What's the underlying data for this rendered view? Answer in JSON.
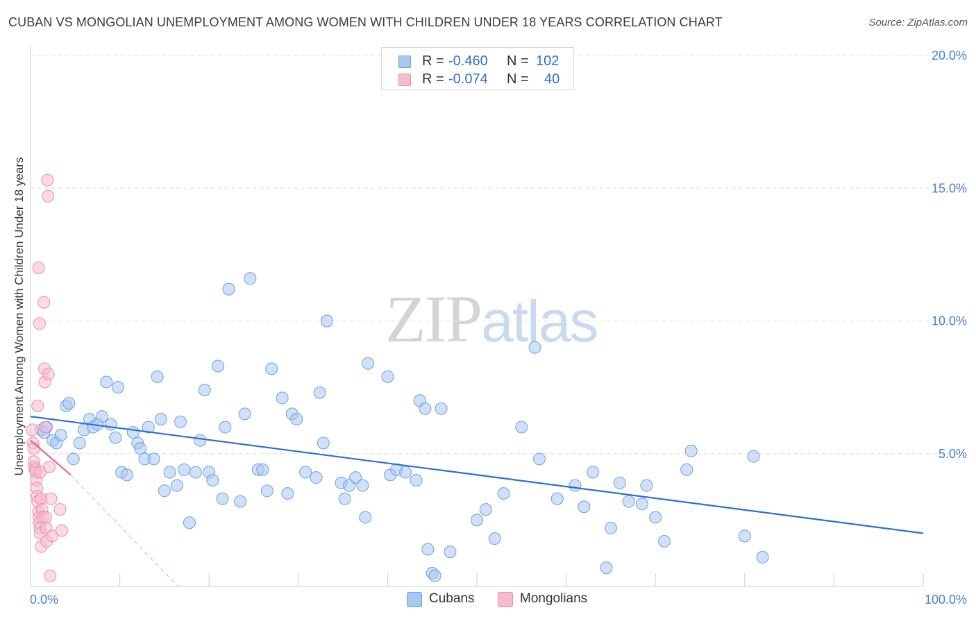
{
  "header": {
    "title": "CUBAN VS MONGOLIAN UNEMPLOYMENT AMONG WOMEN WITH CHILDREN UNDER 18 YEARS CORRELATION CHART",
    "source": "Source: ZipAtlas.com"
  },
  "watermark": {
    "zip": "ZIP",
    "atlas": "atlas"
  },
  "legend": {
    "rows": [
      {
        "r_label": "R =",
        "r_value": "-0.460",
        "n_label": "N =",
        "n_value": "102"
      },
      {
        "r_label": "R =",
        "r_value": "-0.074",
        "n_label": "N =",
        "n_value": "40"
      }
    ]
  },
  "bottom_legend": {
    "cubans": "Cubans",
    "mongolians": "Mongolians"
  },
  "colors": {
    "cubans_fill": "#a9c8f0",
    "cubans_stroke": "#6f9fde",
    "cubans_line": "#2a6fd0",
    "mongolians_fill": "#f6bccd",
    "mongolians_stroke": "#ec8fab",
    "mongolians_line": "#e4658f",
    "tick_color": "#4a7fcf",
    "grid": "#dddddd"
  },
  "chart_data": {
    "type": "scatter",
    "title": "CUBAN VS MONGOLIAN UNEMPLOYMENT AMONG WOMEN WITH CHILDREN UNDER 18 YEARS CORRELATION CHART",
    "xlabel": "",
    "ylabel": "Unemployment Among Women with Children Under 18 years",
    "xlim": [
      0,
      100
    ],
    "ylim": [
      0,
      20
    ],
    "x_tick_labels": [
      "0.0%",
      "100.0%"
    ],
    "y_ticks": [
      5,
      10,
      15,
      20
    ],
    "y_tick_labels": [
      "5.0%",
      "10.0%",
      "15.0%",
      "20.0%"
    ],
    "grid": true,
    "series": [
      {
        "name": "Cubans",
        "r": -0.46,
        "n": 102,
        "trend": {
          "x": [
            0,
            100
          ],
          "y": [
            6.4,
            2.0
          ]
        },
        "points": [
          [
            1.2,
            5.9
          ],
          [
            1.5,
            5.8
          ],
          [
            1.8,
            6.0
          ],
          [
            2.5,
            5.5
          ],
          [
            2.9,
            5.4
          ],
          [
            3.4,
            5.7
          ],
          [
            4.0,
            6.8
          ],
          [
            4.3,
            6.9
          ],
          [
            4.8,
            4.8
          ],
          [
            5.5,
            5.4
          ],
          [
            6.0,
            5.9
          ],
          [
            6.6,
            6.3
          ],
          [
            7.0,
            6.0
          ],
          [
            7.5,
            6.1
          ],
          [
            8.0,
            6.4
          ],
          [
            8.5,
            7.7
          ],
          [
            9.0,
            6.1
          ],
          [
            9.5,
            5.6
          ],
          [
            9.8,
            7.5
          ],
          [
            10.2,
            4.3
          ],
          [
            10.8,
            4.2
          ],
          [
            11.5,
            5.8
          ],
          [
            12.0,
            5.4
          ],
          [
            12.3,
            5.2
          ],
          [
            12.8,
            4.8
          ],
          [
            13.2,
            6.0
          ],
          [
            13.8,
            4.8
          ],
          [
            14.2,
            7.9
          ],
          [
            14.6,
            6.3
          ],
          [
            15.0,
            3.6
          ],
          [
            15.6,
            4.3
          ],
          [
            16.4,
            3.8
          ],
          [
            16.8,
            6.2
          ],
          [
            17.2,
            4.4
          ],
          [
            17.8,
            2.4
          ],
          [
            18.5,
            4.3
          ],
          [
            19.0,
            5.5
          ],
          [
            19.5,
            7.4
          ],
          [
            20.0,
            4.3
          ],
          [
            20.4,
            4.0
          ],
          [
            21.0,
            8.3
          ],
          [
            21.5,
            3.3
          ],
          [
            21.8,
            6.0
          ],
          [
            22.2,
            11.2
          ],
          [
            23.5,
            3.2
          ],
          [
            24.0,
            6.5
          ],
          [
            24.6,
            11.6
          ],
          [
            25.5,
            4.4
          ],
          [
            26.0,
            4.4
          ],
          [
            26.5,
            3.6
          ],
          [
            27.0,
            8.2
          ],
          [
            28.2,
            7.1
          ],
          [
            28.8,
            3.5
          ],
          [
            29.3,
            6.5
          ],
          [
            29.8,
            6.3
          ],
          [
            30.8,
            4.3
          ],
          [
            32.0,
            4.1
          ],
          [
            32.4,
            7.3
          ],
          [
            32.8,
            5.4
          ],
          [
            33.2,
            10.0
          ],
          [
            34.8,
            3.9
          ],
          [
            35.2,
            3.3
          ],
          [
            35.7,
            3.8
          ],
          [
            36.4,
            4.1
          ],
          [
            37.2,
            3.8
          ],
          [
            37.5,
            2.6
          ],
          [
            37.8,
            8.4
          ],
          [
            40.0,
            7.9
          ],
          [
            40.3,
            4.2
          ],
          [
            41.0,
            4.4
          ],
          [
            42.0,
            4.3
          ],
          [
            43.2,
            4.0
          ],
          [
            43.6,
            7.0
          ],
          [
            44.2,
            6.7
          ],
          [
            44.5,
            1.4
          ],
          [
            45.0,
            0.5
          ],
          [
            45.3,
            0.4
          ],
          [
            46.0,
            6.7
          ],
          [
            47.0,
            1.3
          ],
          [
            50.0,
            2.5
          ],
          [
            51.0,
            2.9
          ],
          [
            52.0,
            1.8
          ],
          [
            53.0,
            3.5
          ],
          [
            55.0,
            6.0
          ],
          [
            56.5,
            9.0
          ],
          [
            57.0,
            4.8
          ],
          [
            59.0,
            3.3
          ],
          [
            61.0,
            3.8
          ],
          [
            62.0,
            3.0
          ],
          [
            63.0,
            4.3
          ],
          [
            64.5,
            0.7
          ],
          [
            65.0,
            2.2
          ],
          [
            66.0,
            3.9
          ],
          [
            67.0,
            3.2
          ],
          [
            68.5,
            3.1
          ],
          [
            69.0,
            3.8
          ],
          [
            70.0,
            2.6
          ],
          [
            71.0,
            1.7
          ],
          [
            73.5,
            4.4
          ],
          [
            74.0,
            5.1
          ],
          [
            80.0,
            1.9
          ],
          [
            81.0,
            4.9
          ],
          [
            82.0,
            1.1
          ]
        ]
      },
      {
        "name": "Mongolians",
        "r": -0.074,
        "n": 40,
        "trend": {
          "x": [
            0,
            4.5
          ],
          "y": [
            5.5,
            4.2
          ]
        },
        "trend_extension": {
          "x": [
            4.5,
            16.5
          ],
          "y": [
            4.2,
            0.0
          ]
        },
        "points": [
          [
            0.2,
            5.9
          ],
          [
            0.3,
            5.4
          ],
          [
            0.35,
            5.2
          ],
          [
            0.4,
            4.7
          ],
          [
            0.45,
            4.5
          ],
          [
            0.5,
            4.4
          ],
          [
            0.6,
            4.3
          ],
          [
            0.65,
            4.0
          ],
          [
            0.7,
            3.7
          ],
          [
            0.75,
            3.4
          ],
          [
            0.8,
            3.2
          ],
          [
            0.9,
            2.8
          ],
          [
            0.95,
            2.6
          ],
          [
            1.0,
            2.4
          ],
          [
            1.05,
            2.2
          ],
          [
            1.1,
            2.0
          ],
          [
            1.2,
            1.5
          ],
          [
            0.8,
            6.8
          ],
          [
            0.9,
            12.0
          ],
          [
            1.0,
            9.9
          ],
          [
            1.1,
            4.3
          ],
          [
            1.2,
            3.3
          ],
          [
            1.3,
            2.9
          ],
          [
            1.4,
            2.6
          ],
          [
            1.5,
            10.7
          ],
          [
            1.55,
            8.2
          ],
          [
            1.6,
            7.7
          ],
          [
            1.65,
            6.0
          ],
          [
            1.7,
            2.6
          ],
          [
            1.75,
            2.2
          ],
          [
            1.8,
            1.7
          ],
          [
            1.9,
            15.3
          ],
          [
            1.95,
            14.7
          ],
          [
            2.0,
            8.0
          ],
          [
            2.1,
            4.5
          ],
          [
            2.2,
            0.4
          ],
          [
            2.3,
            3.3
          ],
          [
            2.4,
            1.9
          ],
          [
            3.3,
            2.9
          ],
          [
            3.5,
            2.1
          ]
        ]
      }
    ]
  }
}
